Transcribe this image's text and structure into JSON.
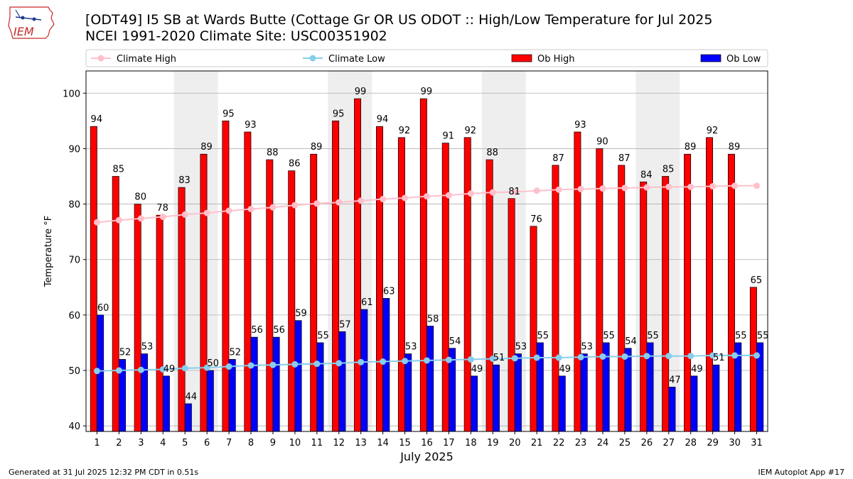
{
  "header": {
    "title_line1": "[ODT49] I5 SB at Wards Butte (Cottage Gr OR US ODOT :: High/Low Temperature for Jul 2025",
    "title_line2": "NCEI 1991-2020 Climate Site: USC00351902",
    "logo_text": "IEM"
  },
  "footer": {
    "left": "Generated at 31 Jul 2025 12:32 PM CDT in 0.51s",
    "right": "IEM Autoplot App #17"
  },
  "colors": {
    "ob_high": "#ff0000",
    "ob_low": "#0000ff",
    "climate_high": "#ffc0cb",
    "climate_low": "#87ceeb",
    "weekend_band": "#eeeeee",
    "grid": "#b0b0b0"
  },
  "chart_data": {
    "type": "bar",
    "xlabel": "July 2025",
    "ylabel": "Temperature °F",
    "ylim": [
      39,
      104
    ],
    "yticks": [
      40,
      50,
      60,
      70,
      80,
      90,
      100
    ],
    "grid": "horizontal",
    "legend_position": "top",
    "categories": [
      "1",
      "2",
      "3",
      "4",
      "5",
      "6",
      "7",
      "8",
      "9",
      "10",
      "11",
      "12",
      "13",
      "14",
      "15",
      "16",
      "17",
      "18",
      "19",
      "20",
      "21",
      "22",
      "23",
      "24",
      "25",
      "26",
      "27",
      "28",
      "29",
      "30",
      "31"
    ],
    "weekend_bands": [
      [
        "5",
        "6"
      ],
      [
        "12",
        "13"
      ],
      [
        "19",
        "20"
      ],
      [
        "26",
        "27"
      ]
    ],
    "series": [
      {
        "name": "Ob High",
        "kind": "bar",
        "values": [
          94,
          85,
          80,
          78,
          83,
          89,
          95,
          93,
          88,
          86,
          89,
          95,
          99,
          94,
          92,
          99,
          91,
          92,
          88,
          81,
          76,
          87,
          93,
          90,
          87,
          84,
          85,
          89,
          92,
          89,
          65
        ],
        "labels": [
          "94",
          "85",
          "80",
          "78",
          "83",
          "89",
          "95",
          "93",
          "88",
          "86",
          "89",
          "95",
          "99",
          "94",
          "92",
          "99",
          "91",
          "92",
          "88",
          "81",
          "76",
          "87",
          "93",
          "90",
          "87",
          "84",
          "85",
          "89",
          "92",
          "89",
          "65"
        ]
      },
      {
        "name": "Ob Low",
        "kind": "bar",
        "values": [
          60,
          52,
          53,
          49,
          44,
          50,
          52,
          56,
          56,
          59,
          55,
          57,
          61,
          63,
          53,
          58,
          54,
          49,
          51,
          53,
          55,
          49,
          53,
          55,
          54,
          55,
          47,
          49,
          51,
          55,
          55
        ],
        "labels": [
          "60",
          "52",
          "53",
          "49",
          "44",
          "50",
          "52",
          "56",
          "56",
          "59",
          "55",
          "57",
          "61",
          "63",
          "53",
          "58",
          "54",
          "49",
          "51",
          "53",
          "55",
          "49",
          "53",
          "55",
          "54",
          "55",
          "47",
          "49",
          "51",
          "55",
          "55"
        ]
      },
      {
        "name": "Climate High",
        "kind": "line",
        "values": [
          76.7,
          77.1,
          77.4,
          77.7,
          78.1,
          78.4,
          78.8,
          79.1,
          79.4,
          79.8,
          80.1,
          80.3,
          80.6,
          80.9,
          81.1,
          81.4,
          81.6,
          81.9,
          82.1,
          82.2,
          82.4,
          82.6,
          82.7,
          82.8,
          82.9,
          83.0,
          83.1,
          83.1,
          83.2,
          83.3,
          83.3
        ]
      },
      {
        "name": "Climate Low",
        "kind": "line",
        "values": [
          49.9,
          50.0,
          50.1,
          50.2,
          50.4,
          50.5,
          50.7,
          50.9,
          51.0,
          51.1,
          51.2,
          51.3,
          51.5,
          51.6,
          51.7,
          51.8,
          51.9,
          52.0,
          52.1,
          52.2,
          52.3,
          52.3,
          52.4,
          52.5,
          52.5,
          52.6,
          52.6,
          52.6,
          52.7,
          52.7,
          52.7
        ]
      }
    ]
  }
}
